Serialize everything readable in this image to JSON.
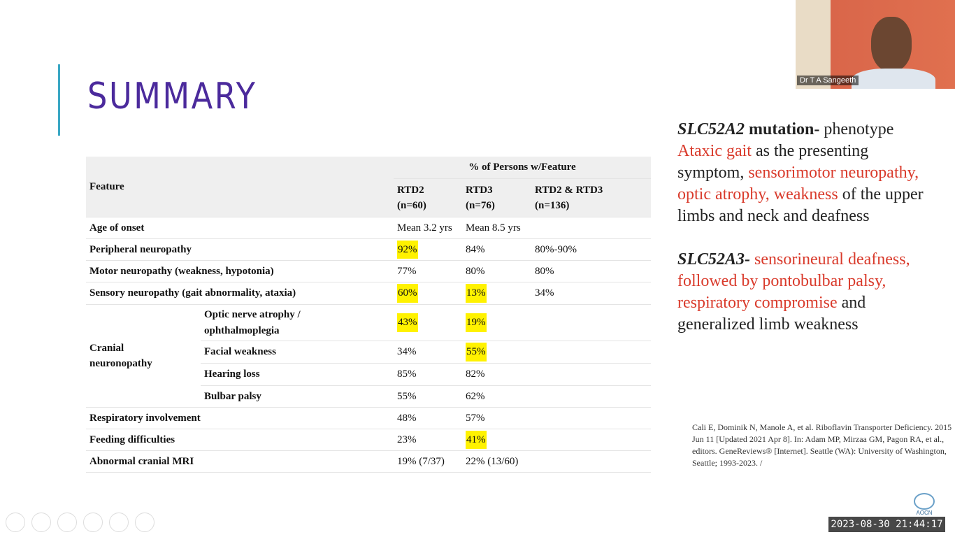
{
  "slide": {
    "title": "SUMMARY",
    "table": {
      "header": {
        "feature": "Feature",
        "group": "% of Persons w/Feature"
      },
      "columns": [
        {
          "name": "RTD2",
          "n": "(n=60)"
        },
        {
          "name": "RTD3",
          "n": "(n=76)"
        },
        {
          "name": "RTD2 & RTD3",
          "n": "(n=136)"
        }
      ],
      "rows": [
        {
          "feature": "Age of onset",
          "values": [
            "Mean 3.2 yrs",
            "Mean 8.5 yrs",
            null
          ],
          "highlight": [
            false,
            false,
            false
          ]
        },
        {
          "feature": "Peripheral neuropathy",
          "values": [
            "92%",
            "84%",
            "80%-90%"
          ],
          "highlight": [
            true,
            false,
            false
          ]
        },
        {
          "feature": "Motor neuropathy (weakness, hypotonia)",
          "values": [
            "77%",
            "80%",
            "80%"
          ],
          "highlight": [
            false,
            false,
            false
          ]
        },
        {
          "feature": "Sensory neuropathy (gait abnormality, ataxia)",
          "values": [
            "60%",
            "13%",
            "34%"
          ],
          "highlight": [
            true,
            true,
            false
          ]
        },
        {
          "label": "Cranial neuronopathy",
          "subrows": [
            {
              "feature": "Optic nerve atrophy / ophthalmoplegia",
              "values": [
                "43%",
                "19%",
                null
              ],
              "highlight": [
                true,
                true,
                false
              ]
            },
            {
              "feature": "Facial weakness",
              "values": [
                "34%",
                "55%",
                null
              ],
              "highlight": [
                false,
                true,
                false
              ]
            },
            {
              "feature": "Hearing loss",
              "values": [
                "85%",
                "82%",
                null
              ],
              "highlight": [
                false,
                false,
                false
              ]
            },
            {
              "feature": "Bulbar palsy",
              "values": [
                "55%",
                "62%",
                null
              ],
              "highlight": [
                false,
                false,
                false
              ]
            }
          ]
        },
        {
          "feature": "Respiratory involvement",
          "values": [
            "48%",
            "57%",
            null
          ],
          "highlight": [
            false,
            false,
            false
          ]
        },
        {
          "feature": "Feeding difficulties",
          "values": [
            "23%",
            "41%",
            null
          ],
          "highlight": [
            false,
            true,
            false
          ]
        },
        {
          "feature": "Abnormal cranial MRI",
          "values": [
            "19% (7/37)",
            "22% (13/60)",
            null
          ],
          "highlight": [
            false,
            false,
            false
          ]
        }
      ]
    },
    "notes": [
      {
        "segments": [
          {
            "text": "SLC52A2",
            "style": "bold-italic"
          },
          {
            "text": "mutation-",
            "style": "bold"
          },
          {
            "text": "phenotype",
            "style": "normal"
          },
          {
            "text": "Ataxic gait",
            "style": "red"
          },
          {
            "text": "as the presenting symptom,",
            "style": "normal"
          },
          {
            "text": "sensorimotor neuropathy, optic atrophy, weakness",
            "style": "red"
          },
          {
            "text": "of the upper limbs and neck and deafness",
            "style": "normal"
          }
        ]
      },
      {
        "segments": [
          {
            "text": "SLC52A3-",
            "style": "bold-italic"
          },
          {
            "text": "sensorineural deafness, followed by pontobulbar palsy, respiratory compromise",
            "style": "red"
          },
          {
            "text": "and generalized limb weakness",
            "style": "normal"
          }
        ]
      }
    ],
    "citation": "Cali E, Dominik N, Manole A, et al. Riboflavin Transporter Deficiency. 2015 Jun 11 [Updated 2021 Apr 8]. In: Adam MP, Mirzaa GM, Pagon RA, et al., editors. GeneReviews® [Internet]. Seattle (WA): University of Washington, Seattle; 1993-2023. /"
  },
  "video": {
    "speaker": "Dr T A Sangeeth",
    "timestamp": "2023-08-30 21:44:17",
    "logo": "AOCN"
  }
}
